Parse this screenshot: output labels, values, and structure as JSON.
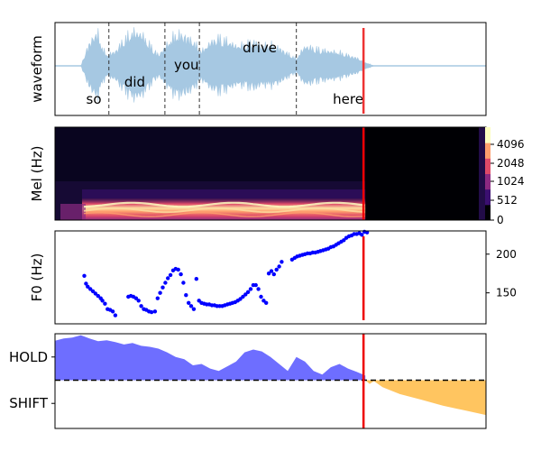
{
  "chart_data": [
    {
      "type": "line",
      "panel": "waveform",
      "ylabel": "waveform",
      "words": [
        {
          "text": "so",
          "t": 0.09
        },
        {
          "text": "did",
          "t": 0.185
        },
        {
          "text": "you",
          "t": 0.305
        },
        {
          "text": "drive",
          "t": 0.475
        },
        {
          "text": "here",
          "t": 0.68
        }
      ],
      "boundaries": [
        0.125,
        0.255,
        0.335,
        0.56
      ],
      "speech_end": 0.72,
      "envelope": {
        "t": [
          0.0,
          0.06,
          0.075,
          0.09,
          0.1,
          0.11,
          0.12,
          0.14,
          0.16,
          0.18,
          0.2,
          0.22,
          0.24,
          0.26,
          0.28,
          0.3,
          0.32,
          0.34,
          0.36,
          0.38,
          0.4,
          0.42,
          0.44,
          0.46,
          0.48,
          0.5,
          0.52,
          0.54,
          0.56,
          0.58,
          0.6,
          0.62,
          0.64,
          0.66,
          0.68,
          0.7,
          0.72,
          0.74,
          1.0
        ],
        "amp": [
          0.0,
          0.0,
          0.5,
          0.85,
          0.9,
          0.5,
          0.3,
          0.4,
          0.75,
          0.95,
          0.9,
          0.6,
          0.3,
          0.6,
          0.9,
          0.85,
          0.7,
          0.4,
          0.65,
          0.8,
          0.7,
          0.55,
          0.6,
          0.7,
          0.55,
          0.6,
          0.5,
          0.35,
          0.2,
          0.55,
          0.5,
          0.45,
          0.4,
          0.38,
          0.3,
          0.22,
          0.1,
          0.0,
          0.0
        ]
      },
      "colors": {
        "wave": "#a6c8e2",
        "marker": "#ee3333"
      }
    },
    {
      "type": "heatmap",
      "panel": "mel",
      "ylabel": "Mel (Hz)",
      "yticks": [
        "0",
        "512",
        "1024",
        "2048",
        "4096"
      ],
      "speech_end": 0.72,
      "colors": {
        "cmap": [
          "#000004",
          "#3b0f70",
          "#8c2981",
          "#de4968",
          "#fe9f6d",
          "#fcfdbf"
        ]
      }
    },
    {
      "type": "scatter",
      "panel": "f0",
      "ylabel": "F0 (Hz)",
      "ylim": [
        110,
        230
      ],
      "yticks": [
        150,
        200
      ],
      "x": [
        0.068,
        0.072,
        0.076,
        0.082,
        0.088,
        0.094,
        0.1,
        0.106,
        0.11,
        0.116,
        0.122,
        0.128,
        0.134,
        0.14,
        0.17,
        0.176,
        0.182,
        0.188,
        0.194,
        0.2,
        0.206,
        0.212,
        0.218,
        0.224,
        0.232,
        0.238,
        0.244,
        0.25,
        0.256,
        0.262,
        0.268,
        0.274,
        0.28,
        0.286,
        0.292,
        0.298,
        0.304,
        0.31,
        0.316,
        0.322,
        0.328,
        0.334,
        0.34,
        0.346,
        0.352,
        0.358,
        0.364,
        0.37,
        0.376,
        0.382,
        0.388,
        0.394,
        0.4,
        0.406,
        0.412,
        0.418,
        0.424,
        0.43,
        0.436,
        0.442,
        0.448,
        0.454,
        0.46,
        0.466,
        0.472,
        0.478,
        0.484,
        0.49,
        0.496,
        0.502,
        0.508,
        0.514,
        0.52,
        0.526,
        0.55,
        0.556,
        0.562,
        0.568,
        0.574,
        0.58,
        0.586,
        0.592,
        0.598,
        0.604,
        0.61,
        0.616,
        0.622,
        0.628,
        0.634,
        0.64,
        0.646,
        0.652,
        0.658,
        0.664,
        0.67,
        0.676,
        0.682,
        0.688,
        0.694,
        0.7,
        0.706,
        0.712,
        0.718,
        0.724
      ],
      "y": [
        172,
        162,
        158,
        155,
        152,
        149,
        146,
        143,
        140,
        136,
        129,
        128,
        126,
        121,
        145,
        146,
        145,
        143,
        140,
        133,
        129,
        128,
        126,
        125,
        126,
        143,
        150,
        157,
        163,
        169,
        173,
        179,
        181,
        180,
        174,
        163,
        147,
        137,
        133,
        129,
        168,
        140,
        137,
        136,
        135,
        135,
        134,
        134,
        133,
        133,
        133,
        134,
        135,
        136,
        137,
        138,
        140,
        142,
        145,
        148,
        151,
        155,
        160,
        160,
        155,
        145,
        140,
        137,
        175,
        178,
        174,
        180,
        184,
        190,
        193,
        195,
        197,
        198,
        199,
        200,
        201,
        201,
        202,
        202,
        203,
        204,
        205,
        206,
        207,
        209,
        210,
        212,
        214,
        216,
        218,
        221,
        223,
        224,
        226,
        226,
        227,
        225,
        229,
        228
      ],
      "speech_end": 0.72,
      "colors": {
        "points": "#0000ff",
        "marker": "#ee0000"
      }
    },
    {
      "type": "area",
      "panel": "turn",
      "categories": [
        "HOLD",
        "SHIFT"
      ],
      "ylim": [
        -1,
        1
      ],
      "threshold": 0,
      "hold": {
        "x": [
          0.0,
          0.02,
          0.04,
          0.06,
          0.08,
          0.1,
          0.12,
          0.14,
          0.16,
          0.18,
          0.2,
          0.22,
          0.24,
          0.26,
          0.28,
          0.3,
          0.32,
          0.34,
          0.36,
          0.38,
          0.4,
          0.42,
          0.44,
          0.46,
          0.48,
          0.5,
          0.52,
          0.54,
          0.56,
          0.58,
          0.6,
          0.62,
          0.64,
          0.66,
          0.68,
          0.7,
          0.72
        ],
        "y": [
          0.85,
          0.9,
          0.92,
          0.97,
          0.9,
          0.84,
          0.86,
          0.82,
          0.77,
          0.8,
          0.74,
          0.72,
          0.68,
          0.6,
          0.5,
          0.45,
          0.32,
          0.35,
          0.25,
          0.2,
          0.3,
          0.4,
          0.6,
          0.66,
          0.62,
          0.5,
          0.35,
          0.2,
          0.5,
          0.4,
          0.2,
          0.12,
          0.28,
          0.35,
          0.25,
          0.18,
          0.1
        ]
      },
      "shift": {
        "x": [
          0.72,
          0.73,
          0.74,
          0.76,
          0.8,
          0.85,
          0.9,
          0.95,
          1.0
        ],
        "y": [
          0.0,
          -0.08,
          -0.02,
          -0.15,
          -0.3,
          -0.42,
          -0.55,
          -0.65,
          -0.75
        ]
      },
      "speech_end": 0.72,
      "colors": {
        "hold": "#5555ff",
        "shift": "#ffbf4f",
        "marker": "#ee0000"
      }
    }
  ]
}
